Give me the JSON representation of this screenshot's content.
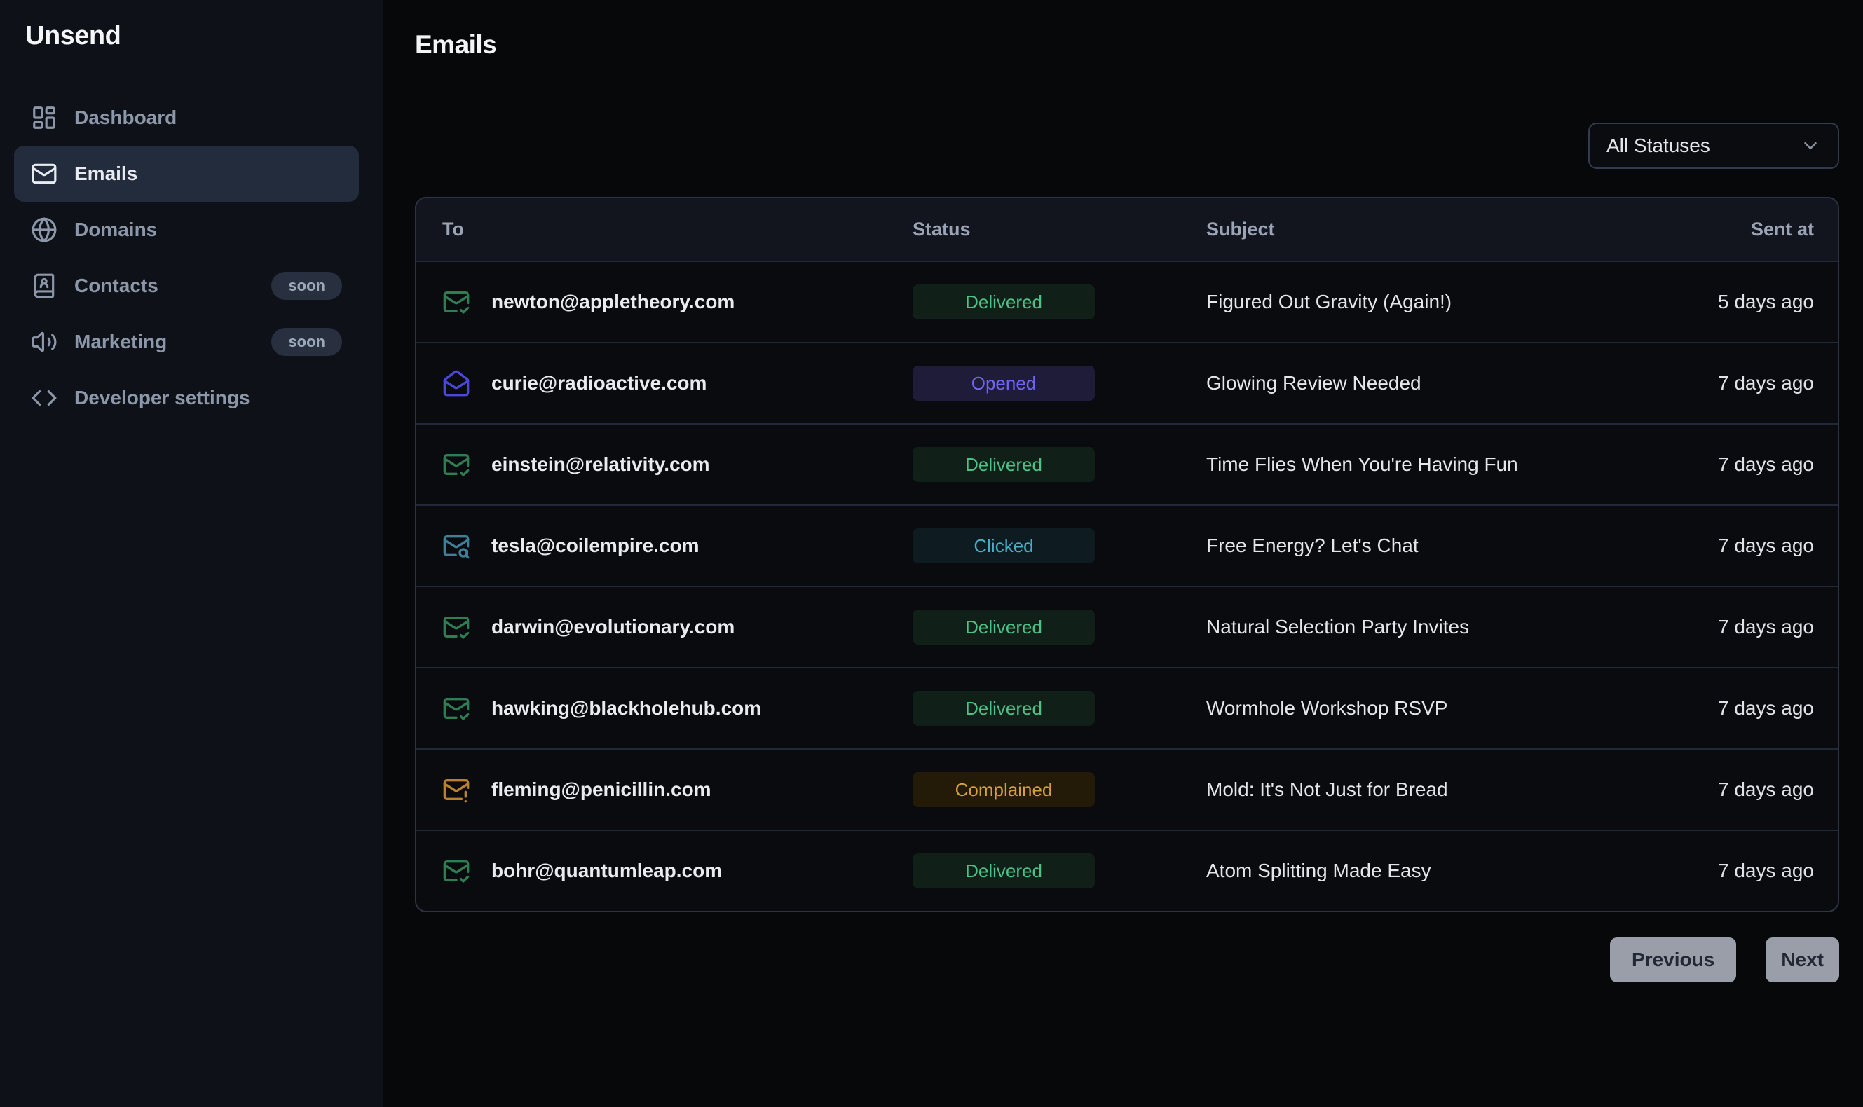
{
  "app": {
    "name": "Unsend"
  },
  "sidebar": {
    "items": [
      {
        "label": "Dashboard",
        "icon": "dashboard-icon",
        "active": false,
        "badge": null
      },
      {
        "label": "Emails",
        "icon": "mail-icon",
        "active": true,
        "badge": null
      },
      {
        "label": "Domains",
        "icon": "globe-icon",
        "active": false,
        "badge": null
      },
      {
        "label": "Contacts",
        "icon": "contacts-book-icon",
        "active": false,
        "badge": "soon"
      },
      {
        "label": "Marketing",
        "icon": "speaker-icon",
        "active": false,
        "badge": "soon"
      },
      {
        "label": "Developer settings",
        "icon": "code-icon",
        "active": false,
        "badge": null
      }
    ]
  },
  "header": {
    "title": "Emails"
  },
  "filters": {
    "status_dropdown": {
      "value": "All Statuses",
      "icon": "chevron-down-icon"
    }
  },
  "table": {
    "columns": [
      "To",
      "Status",
      "Subject",
      "Sent at"
    ],
    "rows": [
      {
        "to": "newton@appletheory.com",
        "status": "Delivered",
        "icon": "mail-check-icon",
        "subject": "Figured Out Gravity (Again!)",
        "sent_at": "5 days ago"
      },
      {
        "to": "curie@radioactive.com",
        "status": "Opened",
        "icon": "mail-open-icon",
        "subject": "Glowing Review Needed",
        "sent_at": "7 days ago"
      },
      {
        "to": "einstein@relativity.com",
        "status": "Delivered",
        "icon": "mail-check-icon",
        "subject": "Time Flies When You're Having Fun",
        "sent_at": "7 days ago"
      },
      {
        "to": "tesla@coilempire.com",
        "status": "Clicked",
        "icon": "mail-search-icon",
        "subject": "Free Energy? Let's Chat",
        "sent_at": "7 days ago"
      },
      {
        "to": "darwin@evolutionary.com",
        "status": "Delivered",
        "icon": "mail-check-icon",
        "subject": "Natural Selection Party Invites",
        "sent_at": "7 days ago"
      },
      {
        "to": "hawking@blackholehub.com",
        "status": "Delivered",
        "icon": "mail-check-icon",
        "subject": "Wormhole Workshop RSVP",
        "sent_at": "7 days ago"
      },
      {
        "to": "fleming@penicillin.com",
        "status": "Complained",
        "icon": "mail-warning-icon",
        "subject": "Mold: It's Not Just for Bread",
        "sent_at": "7 days ago"
      },
      {
        "to": "bohr@quantumleap.com",
        "status": "Delivered",
        "icon": "mail-check-icon",
        "subject": "Atom Splitting Made Easy",
        "sent_at": "7 days ago"
      }
    ]
  },
  "pagination": {
    "previous_label": "Previous",
    "next_label": "Next"
  },
  "colors": {
    "main_bg": "#07080a",
    "sidebar_bg": "#0e1117",
    "active_nav_bg": "#222c3c",
    "table_header_bg": "#12151d",
    "table_border": "#2c3347",
    "status_styles": {
      "Delivered": {
        "text": "#4dc287",
        "bg": "#101f17",
        "icon": "#2e7d53"
      },
      "Opened": {
        "text": "#6e65f0",
        "bg": "#1e1c38",
        "icon": "#4a47dc"
      },
      "Clicked": {
        "text": "#46aec6",
        "bg": "#0e1c22",
        "icon": "#3f7f98"
      },
      "Complained": {
        "text": "#d2a03c",
        "bg": "#231a08",
        "icon": "#b8812c"
      }
    }
  }
}
